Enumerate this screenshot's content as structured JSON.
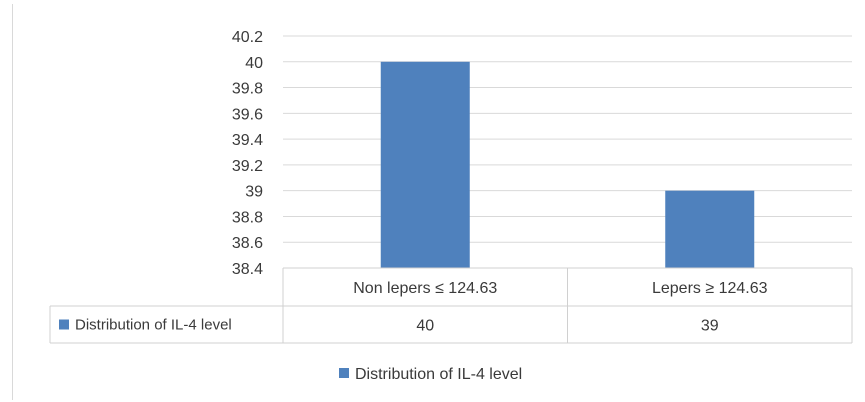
{
  "chart_data": {
    "type": "bar",
    "categories": [
      "Non lepers ≤ 124.63",
      "Lepers ≥ 124.63"
    ],
    "series": [
      {
        "name": "Distribution of IL-4 level",
        "values": [
          40,
          39
        ],
        "color": "#4f81bd"
      }
    ],
    "value_labels": [
      "40",
      "39"
    ],
    "ylim": [
      38.4,
      40.2
    ],
    "yticks": [
      38.4,
      38.6,
      38.8,
      39,
      39.2,
      39.4,
      39.6,
      39.8,
      40,
      40.2
    ],
    "ytick_labels": [
      "38.4",
      "38.6",
      "38.8",
      "39",
      "39.2",
      "39.4",
      "39.6",
      "39.8",
      "40",
      "40.2"
    ],
    "grid": true,
    "data_table": true,
    "legend_position": "bottom",
    "title": "",
    "xlabel": "",
    "ylabel": ""
  }
}
